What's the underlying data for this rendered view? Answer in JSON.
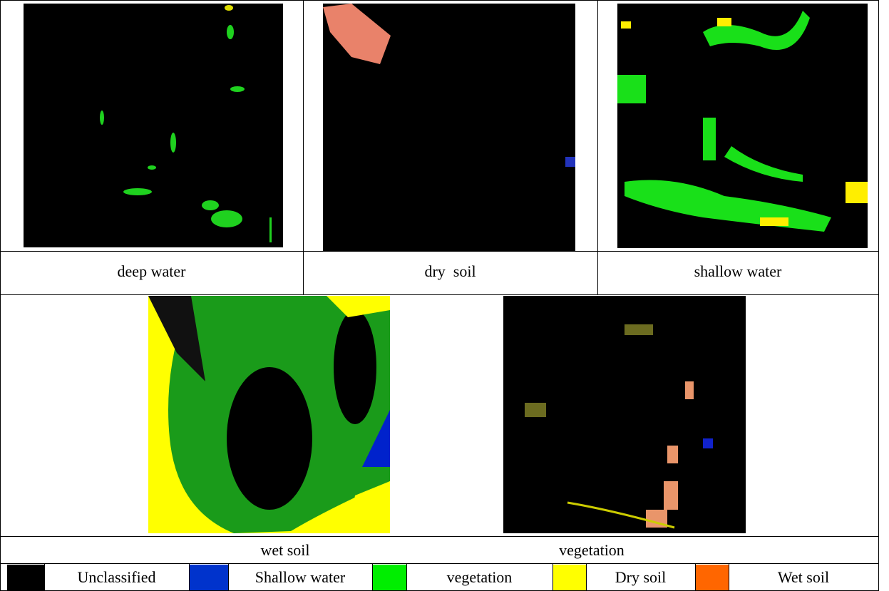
{
  "figure": {
    "panels": [
      {
        "caption": "deep water"
      },
      {
        "caption": "dry  soil"
      },
      {
        "caption": "shallow water"
      },
      {
        "caption": "wet soil"
      },
      {
        "caption": "vegetation"
      }
    ],
    "legend": [
      {
        "name": "Unclassified",
        "color": "#000000"
      },
      {
        "name": "Shallow water",
        "color": "#0033cc"
      },
      {
        "name": "vegetation",
        "color": "#00ee00"
      },
      {
        "name": "Dry soil",
        "color": "#ffff00"
      },
      {
        "name": "Wet soil",
        "color": "#ff6600"
      }
    ]
  }
}
